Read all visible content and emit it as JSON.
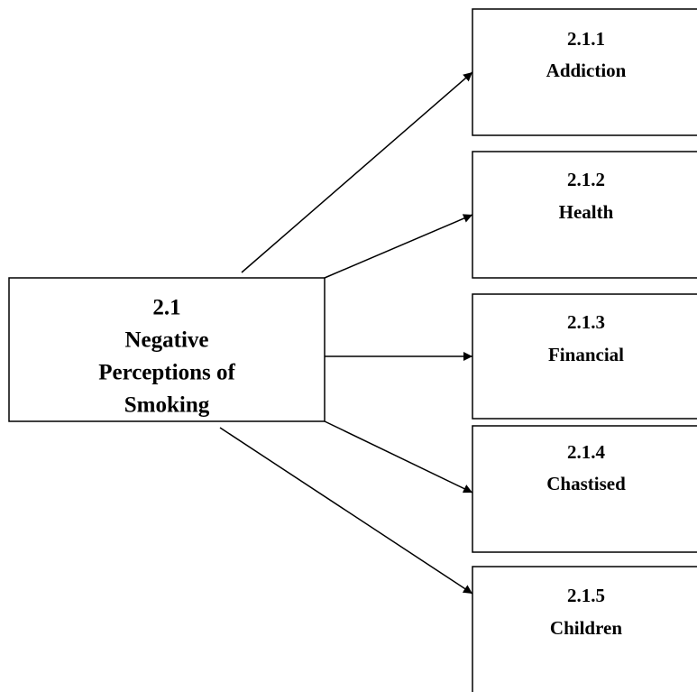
{
  "root": {
    "number": "2.1",
    "label": [
      "Negative",
      "Perceptions of",
      "Smoking"
    ]
  },
  "children": [
    {
      "number": "2.1.1",
      "label": "Addiction"
    },
    {
      "number": "2.1.2",
      "label": "Health"
    },
    {
      "number": "2.1.3",
      "label": "Financial"
    },
    {
      "number": "2.1.4",
      "label": "Chastised"
    },
    {
      "number": "2.1.5",
      "label": "Children"
    }
  ]
}
